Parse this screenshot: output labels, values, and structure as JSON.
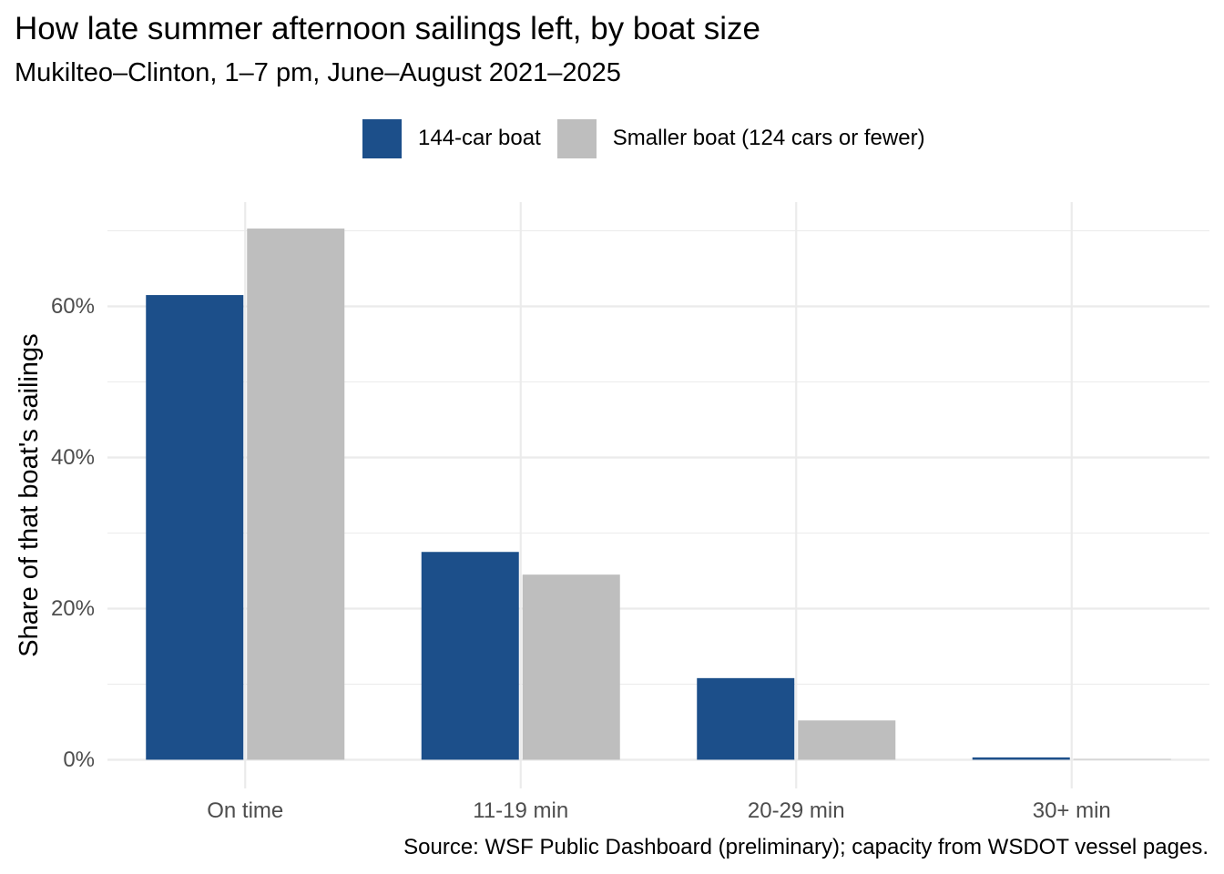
{
  "chart_data": {
    "type": "bar",
    "title": "How late summer afternoon sailings left, by boat size",
    "subtitle": "Mukilteo–Clinton, 1–7 pm, June–August 2021–2025",
    "caption": "Source: WSF Public Dashboard (preliminary); capacity from WSDOT vessel pages.",
    "xlabel": "",
    "ylabel": "Share of that boat's sailings",
    "categories": [
      "On time",
      "11-19 min",
      "20-29 min",
      "30+ min"
    ],
    "series": [
      {
        "name": "144-car boat",
        "color": "#1c4f8a",
        "values": [
          61.5,
          27.5,
          10.8,
          0.3
        ]
      },
      {
        "name": "Smaller boat (124 cars or fewer)",
        "color": "#bebebe",
        "values": [
          70.3,
          24.5,
          5.2,
          0.1
        ]
      }
    ],
    "ylim": [
      -3.8,
      73.8
    ],
    "yticks": [
      0,
      20,
      40,
      60
    ],
    "ytick_labels": [
      "0%",
      "20%",
      "40%",
      "60%"
    ],
    "ytick_minor": [
      10,
      30,
      50,
      70
    ],
    "grid": true,
    "legend_position": "top"
  }
}
